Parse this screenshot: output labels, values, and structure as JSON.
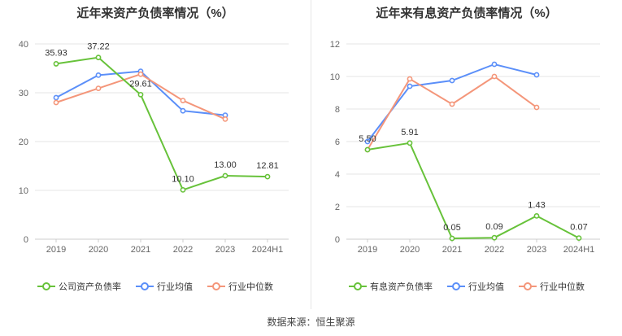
{
  "source": "数据来源：恒生聚源",
  "colors": {
    "company": "#67c23a",
    "industry_avg": "#5b8ff9",
    "industry_median": "#f4967a",
    "grid": "#e5e5e5",
    "axis_text": "#666666"
  },
  "chart_data": [
    {
      "type": "line",
      "title": "近年来资产负债率情况（%）",
      "categories": [
        "2019",
        "2020",
        "2021",
        "2022",
        "2023",
        "2024H1"
      ],
      "ylim": [
        0,
        40
      ],
      "yticks": [
        0,
        10,
        20,
        30,
        40
      ],
      "grid": true,
      "legend_position": "bottom",
      "series": [
        {
          "name": "公司资产负债率",
          "key": "company",
          "values": [
            35.93,
            37.22,
            29.61,
            10.1,
            13.0,
            12.81
          ],
          "labels": [
            "35.93",
            "37.22",
            "29.61",
            "10.10",
            "13.00",
            "12.81"
          ]
        },
        {
          "name": "行业均值",
          "key": "industry_avg",
          "values": [
            29.0,
            33.6,
            34.4,
            26.3,
            25.4,
            null
          ]
        },
        {
          "name": "行业中位数",
          "key": "industry_median",
          "values": [
            28.0,
            30.9,
            33.8,
            28.4,
            24.6,
            null
          ]
        }
      ]
    },
    {
      "type": "line",
      "title": "近年来有息资产负债率情况（%）",
      "categories": [
        "2019",
        "2020",
        "2021",
        "2022",
        "2023",
        "2024H1"
      ],
      "ylim": [
        0,
        12
      ],
      "yticks": [
        0,
        2,
        4,
        6,
        8,
        10,
        12
      ],
      "grid": true,
      "legend_position": "bottom",
      "series": [
        {
          "name": "有息资产负债率",
          "key": "company",
          "values": [
            5.5,
            5.91,
            0.05,
            0.09,
            1.43,
            0.07
          ],
          "labels": [
            "5.50",
            "5.91",
            "0.05",
            "0.09",
            "1.43",
            "0.07"
          ]
        },
        {
          "name": "行业均值",
          "key": "industry_avg",
          "values": [
            6.0,
            9.4,
            9.75,
            10.75,
            10.1,
            null
          ]
        },
        {
          "name": "行业中位数",
          "key": "industry_median",
          "values": [
            5.5,
            9.85,
            8.3,
            10.0,
            8.1,
            null
          ]
        }
      ]
    }
  ]
}
